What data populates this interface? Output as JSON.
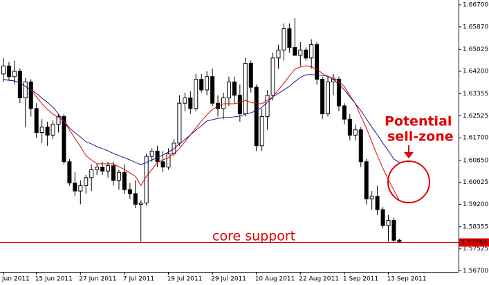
{
  "chart_data": {
    "type": "candlestick",
    "categories": [
      "Jun 2011",
      null,
      null,
      null,
      null,
      null,
      "15 Jun 2011",
      null,
      null,
      null,
      null,
      null,
      null,
      null,
      "27 Jun 2011",
      null,
      null,
      null,
      null,
      null,
      null,
      null,
      "7 Jul 2011",
      null,
      null,
      null,
      null,
      null,
      null,
      null,
      "19 Jul 2011",
      null,
      null,
      null,
      null,
      null,
      null,
      null,
      "29 Jul 2011",
      null,
      null,
      null,
      null,
      null,
      null,
      null,
      "10 Aug 2011",
      null,
      null,
      null,
      null,
      null,
      null,
      null,
      "22 Aug 2011",
      null,
      null,
      null,
      null,
      null,
      null,
      null,
      "1 Sep 2011",
      null,
      null,
      null,
      null,
      null,
      null,
      null,
      "13 Sep 2011",
      null,
      null
    ],
    "open": [
      1.641,
      1.644,
      1.64,
      1.642,
      1.632,
      1.638,
      1.628,
      1.619,
      1.621,
      1.618,
      1.622,
      1.625,
      1.608,
      1.6,
      1.597,
      1.599,
      1.602,
      1.605,
      1.606,
      1.6045,
      1.6065,
      1.601,
      1.604,
      1.5975,
      1.596,
      1.592,
      1.5925,
      1.61,
      1.612,
      1.608,
      1.606,
      1.611,
      1.615,
      1.63,
      1.632,
      1.628,
      1.639,
      1.635,
      1.64,
      1.63,
      1.628,
      1.632,
      1.638,
      1.633,
      1.626,
      1.645,
      1.636,
      1.614,
      1.625,
      1.633,
      1.647,
      1.65,
      1.658,
      1.651,
      1.648,
      1.65,
      1.647,
      1.652,
      1.639,
      1.626,
      1.638,
      1.639,
      1.629,
      1.624,
      1.618,
      1.62,
      1.608,
      1.594,
      1.595,
      1.59,
      1.584,
      1.586,
      1.5785
    ],
    "high": [
      1.647,
      1.6455,
      1.646,
      1.643,
      1.6395,
      1.639,
      1.63,
      1.624,
      1.623,
      1.6235,
      1.626,
      1.626,
      1.609,
      1.604,
      1.601,
      1.603,
      1.607,
      1.6075,
      1.608,
      1.608,
      1.608,
      1.605,
      1.607,
      1.6,
      1.601,
      1.5935,
      1.611,
      1.613,
      1.614,
      1.612,
      1.613,
      1.6165,
      1.633,
      1.634,
      1.6345,
      1.641,
      1.641,
      1.642,
      1.643,
      1.633,
      1.634,
      1.64,
      1.64,
      1.637,
      1.647,
      1.646,
      1.637,
      1.628,
      1.635,
      1.649,
      1.652,
      1.66,
      1.66,
      1.662,
      1.653,
      1.651,
      1.654,
      1.653,
      1.64,
      1.64,
      1.641,
      1.64,
      1.63,
      1.626,
      1.622,
      1.621,
      1.609,
      1.597,
      1.599,
      1.591,
      1.588,
      1.587,
      1.579
    ],
    "low": [
      1.638,
      1.6385,
      1.637,
      1.63,
      1.621,
      1.625,
      1.617,
      1.615,
      1.614,
      1.6165,
      1.619,
      1.607,
      1.599,
      1.595,
      1.592,
      1.596,
      1.597,
      1.603,
      1.603,
      1.602,
      1.599,
      1.5975,
      1.596,
      1.594,
      1.5905,
      1.5779,
      1.5915,
      1.608,
      1.606,
      1.604,
      1.605,
      1.61,
      1.614,
      1.627,
      1.626,
      1.627,
      1.634,
      1.633,
      1.629,
      1.625,
      1.624,
      1.629,
      1.63,
      1.623,
      1.625,
      1.634,
      1.612,
      1.612,
      1.62,
      1.631,
      1.643,
      1.646,
      1.649,
      1.648,
      1.644,
      1.646,
      1.643,
      1.637,
      1.624,
      1.625,
      1.633,
      1.627,
      1.622,
      1.616,
      1.616,
      1.606,
      1.592,
      1.59,
      1.588,
      1.583,
      1.578,
      1.5775,
      1.5776
    ],
    "close": [
      1.644,
      1.64,
      1.642,
      1.632,
      1.638,
      1.628,
      1.619,
      1.621,
      1.618,
      1.622,
      1.625,
      1.608,
      1.6,
      1.597,
      1.599,
      1.602,
      1.605,
      1.606,
      1.6045,
      1.6065,
      1.601,
      1.604,
      1.5975,
      1.596,
      1.592,
      1.5925,
      1.61,
      1.612,
      1.608,
      1.606,
      1.611,
      1.615,
      1.63,
      1.632,
      1.628,
      1.639,
      1.635,
      1.64,
      1.63,
      1.628,
      1.632,
      1.638,
      1.633,
      1.626,
      1.645,
      1.636,
      1.614,
      1.625,
      1.633,
      1.647,
      1.65,
      1.658,
      1.651,
      1.648,
      1.65,
      1.647,
      1.652,
      1.639,
      1.626,
      1.638,
      1.639,
      1.629,
      1.624,
      1.618,
      1.62,
      1.608,
      1.594,
      1.595,
      1.59,
      1.584,
      1.586,
      1.5785,
      1.578
    ],
    "up_fill": "#ffffff",
    "down_fill": "#000000",
    "candle_stroke": "#000000",
    "series": [
      {
        "color": "#e00000",
        "values": [
          1.6389,
          1.6386,
          1.6384,
          1.6376,
          1.6363,
          1.635,
          1.6324,
          1.6298,
          1.6277,
          1.6259,
          1.6246,
          1.6233,
          1.6199,
          1.6168,
          1.6137,
          1.6103,
          1.6087,
          1.6072,
          1.6072,
          1.6072,
          1.6072,
          1.6061,
          1.6051,
          1.6038,
          1.6025,
          1.5991,
          1.6025,
          1.6051,
          1.6077,
          1.6087,
          1.6095,
          1.6111,
          1.6129,
          1.6155,
          1.6181,
          1.6207,
          1.6233,
          1.6256,
          1.6277,
          1.6288,
          1.6298,
          1.6298,
          1.6298,
          1.6303,
          1.6311,
          1.6303,
          1.6298,
          1.6298,
          1.6311,
          1.6324,
          1.635,
          1.6376,
          1.6402,
          1.6428,
          1.6436,
          1.6441,
          1.6436,
          1.6428,
          1.6412,
          1.6397,
          1.6397,
          1.6381,
          1.6363,
          1.6329,
          1.6298,
          1.6251,
          1.6207,
          1.6155,
          1.6103,
          1.6056,
          1.6012,
          1.5973,
          1.5934
        ]
      },
      {
        "color": "#1a1a8c",
        "values": [
          1.6389,
          1.6386,
          1.6384,
          1.6376,
          1.6363,
          1.635,
          1.6337,
          1.6319,
          1.6303,
          1.6285,
          1.6259,
          1.6233,
          1.6207,
          1.6189,
          1.6173,
          1.6155,
          1.6147,
          1.6137,
          1.6129,
          1.6121,
          1.6111,
          1.6103,
          1.6095,
          1.6087,
          1.6077,
          1.6069,
          1.6077,
          1.6087,
          1.6095,
          1.6106,
          1.6116,
          1.6129,
          1.6147,
          1.6163,
          1.6181,
          1.6199,
          1.6215,
          1.6233,
          1.6238,
          1.6243,
          1.6246,
          1.6246,
          1.6249,
          1.6251,
          1.6259,
          1.6264,
          1.6272,
          1.6285,
          1.6303,
          1.6324,
          1.6337,
          1.635,
          1.6363,
          1.6381,
          1.6397,
          1.6407,
          1.6407,
          1.6407,
          1.6405,
          1.6402,
          1.6389,
          1.6371,
          1.635,
          1.6324,
          1.6298,
          1.6272,
          1.6241,
          1.621,
          1.6181,
          1.615,
          1.6121,
          1.609,
          1.6077
        ]
      }
    ],
    "ylim": [
      1.5666,
      1.6688
    ],
    "yticks": [
      {
        "value": 1.667,
        "label": "1.66700"
      },
      {
        "value": 1.6587,
        "label": "1.65870"
      },
      {
        "value": 1.65025,
        "label": "1.65025"
      },
      {
        "value": 1.642,
        "label": "1.64200"
      },
      {
        "value": 1.63355,
        "label": "1.63355"
      },
      {
        "value": 1.62525,
        "label": "1.62525"
      },
      {
        "value": 1.617,
        "label": "1.61700"
      },
      {
        "value": 1.6085,
        "label": "1.60850"
      },
      {
        "value": 1.60025,
        "label": "1.60025"
      },
      {
        "value": 1.592,
        "label": "1.59200"
      },
      {
        "value": 1.58355,
        "label": "1.58355"
      },
      {
        "value": 1.57525,
        "label": "1.57525"
      },
      {
        "value": 1.567,
        "label": "1.56700"
      }
    ],
    "support_level": 1.57764,
    "support_color": "#e00000",
    "annotations": [
      "core support",
      "Potential",
      "sell-zone"
    ]
  }
}
